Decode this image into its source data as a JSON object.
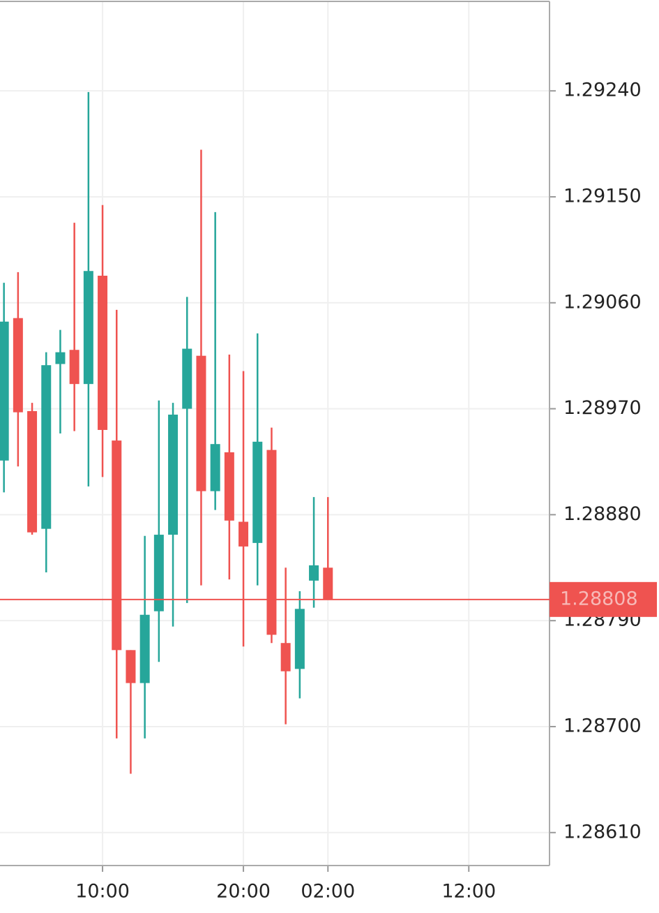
{
  "chart_data": {
    "type": "candlestick",
    "x": [
      3,
      4,
      5,
      6,
      7,
      8,
      9,
      10,
      11,
      12,
      13,
      14,
      15,
      16,
      17,
      18,
      19,
      20,
      21,
      22,
      23,
      24,
      25,
      26
    ],
    "open": [
      1.28926,
      1.29047,
      1.28968,
      1.28868,
      1.29008,
      1.2902,
      1.28991,
      1.29083,
      1.28943,
      1.28765,
      1.28737,
      1.28798,
      1.28863,
      1.2897,
      1.29015,
      1.289,
      1.28933,
      1.28874,
      1.28856,
      1.28935,
      1.28771,
      1.28749,
      1.28824,
      1.28835
    ],
    "high": [
      1.29077,
      1.29086,
      1.28975,
      1.29018,
      1.29037,
      1.29128,
      1.29239,
      1.29143,
      1.29054,
      1.28765,
      1.28862,
      1.28977,
      1.28975,
      1.29065,
      1.2919,
      1.29137,
      1.29016,
      1.29002,
      1.29034,
      1.28954,
      1.28835,
      1.28815,
      1.28895,
      1.28895
    ],
    "low": [
      1.28899,
      1.28921,
      1.28863,
      1.28831,
      1.28949,
      1.28951,
      1.28904,
      1.28912,
      1.2869,
      1.2866,
      1.2869,
      1.28755,
      1.28785,
      1.28805,
      1.2882,
      1.28884,
      1.28825,
      1.28768,
      1.2882,
      1.28771,
      1.28702,
      1.28724,
      1.28801,
      1.28808
    ],
    "close": [
      1.29044,
      1.28967,
      1.28865,
      1.29007,
      1.29018,
      1.28991,
      1.29087,
      1.28952,
      1.28765,
      1.28737,
      1.28795,
      1.28863,
      1.28965,
      1.29021,
      1.289,
      1.2894,
      1.28875,
      1.28853,
      1.28942,
      1.28778,
      1.28747,
      1.288,
      1.28837,
      1.28808
    ],
    "up_color": "#26a69a",
    "down_color": "#ef5350",
    "current_price": 1.28808,
    "xlim": [
      2.72,
      41.73
    ],
    "xticks": [
      {
        "value": 10,
        "label": "10:00"
      },
      {
        "value": 20,
        "label": "20:00"
      },
      {
        "value": 26,
        "label": "02:00"
      },
      {
        "value": 36,
        "label": "12:00"
      }
    ],
    "ylim": [
      1.28582,
      1.29316
    ],
    "yticks": [
      {
        "value": 1.2924,
        "label": "1.29240"
      },
      {
        "value": 1.2915,
        "label": "1.29150"
      },
      {
        "value": 1.2906,
        "label": "1.29060"
      },
      {
        "value": 1.2897,
        "label": "1.28970"
      },
      {
        "value": 1.2888,
        "label": "1.28880"
      },
      {
        "value": 1.2879,
        "label": "1.28790"
      },
      {
        "value": 1.287,
        "label": "1.28700"
      },
      {
        "value": 1.2861,
        "label": "1.28610"
      }
    ],
    "grid": true
  }
}
